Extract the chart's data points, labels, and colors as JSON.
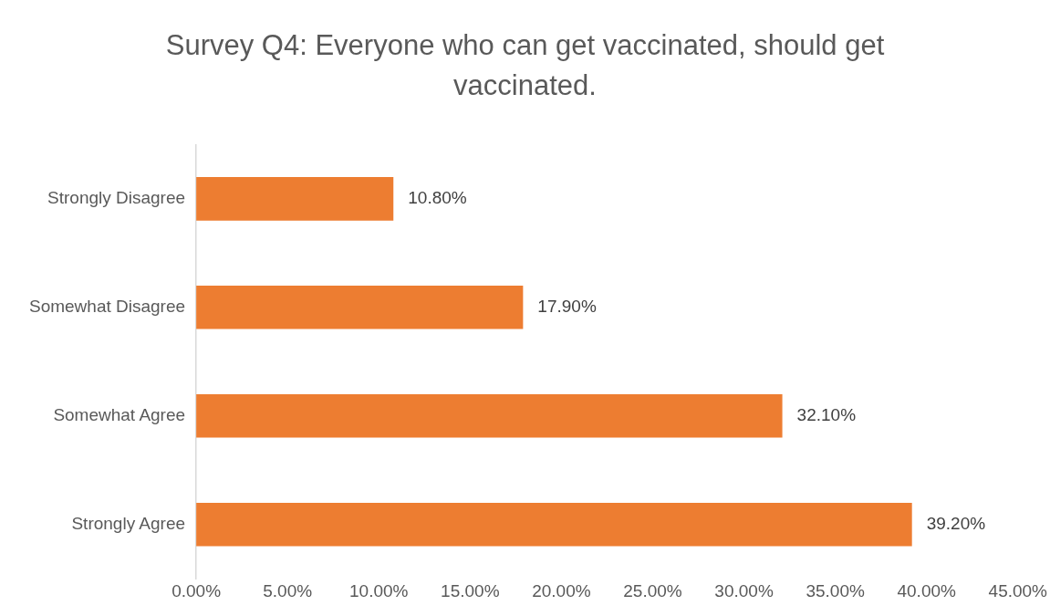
{
  "chart_data": {
    "type": "bar",
    "orientation": "horizontal",
    "title": "Survey Q4: Everyone who can get vaccinated, should get vaccinated.",
    "categories": [
      "Strongly Disagree",
      "Somewhat Disagree",
      "Somewhat Agree",
      "Strongly Agree"
    ],
    "values": [
      10.8,
      17.9,
      32.1,
      39.2
    ],
    "value_labels": [
      "10.80%",
      "17.90%",
      "32.10%",
      "39.20%"
    ],
    "color": "#ed7d31",
    "xlim": [
      0,
      45
    ],
    "xticks": [
      {
        "value": 0,
        "label": "0.00%"
      },
      {
        "value": 5,
        "label": "5.00%"
      },
      {
        "value": 10,
        "label": "10.00%"
      },
      {
        "value": 15,
        "label": "15.00%"
      },
      {
        "value": 20,
        "label": "20.00%"
      },
      {
        "value": 25,
        "label": "25.00%"
      },
      {
        "value": 30,
        "label": "30.00%"
      },
      {
        "value": 35,
        "label": "35.00%"
      },
      {
        "value": 40,
        "label": "40.00%"
      },
      {
        "value": 45,
        "label": "45.00%"
      }
    ],
    "grid": false,
    "legend": false
  }
}
